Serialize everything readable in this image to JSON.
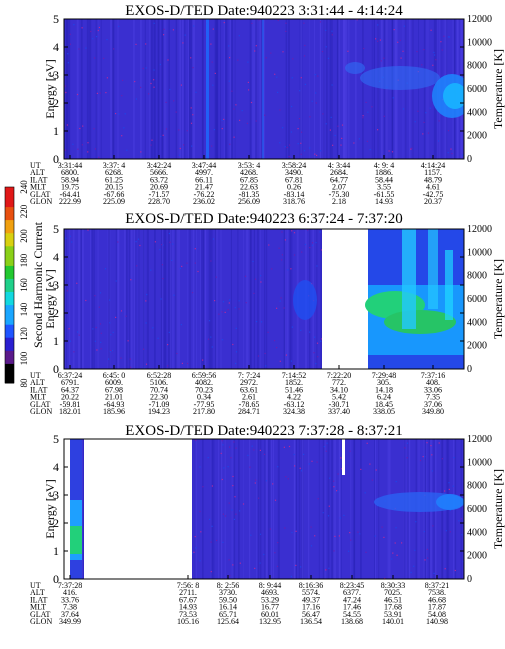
{
  "colorbar": {
    "label": "Second Harmonic Current",
    "ticks": [
      "80",
      "100",
      "120",
      "140",
      "160",
      "180",
      "200",
      "220",
      "240"
    ]
  },
  "row_labels": [
    "UT",
    "ALT",
    "ILAT",
    "MLT",
    "GLAT",
    "GLON"
  ],
  "chart_data": [
    {
      "type": "heatmap",
      "title": "EXOS-D/TED Date:940223 3:31:44 - 4:14:24",
      "ylabel": "Energy [eV]",
      "y2label": "Temperature [K]",
      "ylim": [
        0,
        5
      ],
      "y2lim": [
        0,
        12000
      ],
      "yticks": [
        "0",
        "1",
        "2",
        "3",
        "4",
        "5"
      ],
      "y2ticks": [
        "0",
        "2000",
        "4000",
        "6000",
        "8000",
        "10000",
        "12000"
      ],
      "columns": [
        [
          "3:31:44",
          "6800.",
          "58.94",
          "19.75",
          "-64.41",
          "222.99"
        ],
        [
          "3:37: 4",
          "6268.",
          "61.25",
          "20.15",
          "-67.66",
          "225.09"
        ],
        [
          "3:42:24",
          "5666.",
          "63.72",
          "20.69",
          "-71.57",
          "228.70"
        ],
        [
          "3:47:44",
          "4997.",
          "66.11",
          "21.47",
          "-76.22",
          "236.02"
        ],
        [
          "3:53: 4",
          "4268.",
          "67.85",
          "22.63",
          "-81.35",
          "256.09"
        ],
        [
          "3:58:24",
          "3490.",
          "67.81",
          "0.26",
          "-83.14",
          "318.76"
        ],
        [
          "4: 3:44",
          "2684.",
          "64.77",
          "2.07",
          "-75.30",
          "2.18"
        ],
        [
          "4: 9: 4",
          "1886.",
          "58.44",
          "3.55",
          "-61.55",
          "14.93"
        ],
        [
          "4:14:24",
          "1157.",
          "48.79",
          "4.61",
          "-42.75",
          "20.37"
        ]
      ]
    },
    {
      "type": "heatmap",
      "title": "EXOS-D/TED Date:940223 6:37:24 - 7:37:20",
      "ylabel": "Energy [eV]",
      "y2label": "Temperature [K]",
      "ylim": [
        0,
        5
      ],
      "y2lim": [
        0,
        12000
      ],
      "yticks": [
        "0",
        "1",
        "2",
        "3",
        "4",
        "5"
      ],
      "y2ticks": [
        "0",
        "2000",
        "4000",
        "6000",
        "8000",
        "10000",
        "12000"
      ],
      "columns": [
        [
          "6:37:24",
          "6791.",
          "64.37",
          "20.22",
          "-59.81",
          "182.01"
        ],
        [
          "6:45: 0",
          "6009.",
          "67.98",
          "21.01",
          "-64.93",
          "185.96"
        ],
        [
          "6:52:28",
          "5106.",
          "70.74",
          "22.30",
          "-71.09",
          "194.23"
        ],
        [
          "6:59:56",
          "4082.",
          "70.23",
          "0.34",
          "-77.95",
          "217.80"
        ],
        [
          "7: 7:24",
          "2972.",
          "63.61",
          "2.61",
          "-78.65",
          "284.71"
        ],
        [
          "7:14:52",
          "1852.",
          "51.46",
          "4.22",
          "-63.12",
          "324.38"
        ],
        [
          "7:22:20",
          "772.",
          "34.10",
          "5.42",
          "-30.71",
          "337.40"
        ],
        [
          "7:29:48",
          "305.",
          "14.18",
          "6.24",
          "18.45",
          "338.05"
        ],
        [
          "7:37:16",
          "408.",
          "33.06",
          "7.35",
          "37.06",
          "349.80"
        ]
      ]
    },
    {
      "type": "heatmap",
      "title": "EXOS-D/TED Date:940223 7:37:28 - 8:37:21",
      "ylabel": "Energy [eV]",
      "y2label": "Temperature [K]",
      "ylim": [
        0,
        5
      ],
      "y2lim": [
        0,
        12000
      ],
      "yticks": [
        "0",
        "1",
        "2",
        "3",
        "4",
        "5"
      ],
      "y2ticks": [
        "0",
        "2000",
        "4000",
        "6000",
        "8000",
        "10000",
        "12000"
      ],
      "columns": [
        [
          "7:37:28",
          "416.",
          "33.76",
          "7.38",
          "37.64",
          "349.99"
        ],
        [
          "7:56: 8",
          "2711.",
          "67.67",
          "14.93",
          "73.53",
          "105.16"
        ],
        [
          "8: 2:56",
          "3730.",
          "59.50",
          "16.14",
          "65.71",
          "125.64"
        ],
        [
          "8: 9:44",
          "4693.",
          "53.29",
          "16.77",
          "60.01",
          "132.95"
        ],
        [
          "8:16:36",
          "5574.",
          "49.37",
          "17.16",
          "56.47",
          "136.54"
        ],
        [
          "8:23:45",
          "6377.",
          "47.24",
          "17.46",
          "54.55",
          "138.68"
        ],
        [
          "8:30:33",
          "7025.",
          "46.51",
          "17.68",
          "53.91",
          "140.01"
        ],
        [
          "8:37:21",
          "7538.",
          "46.68",
          "17.87",
          "54.08",
          "140.98"
        ]
      ]
    }
  ]
}
